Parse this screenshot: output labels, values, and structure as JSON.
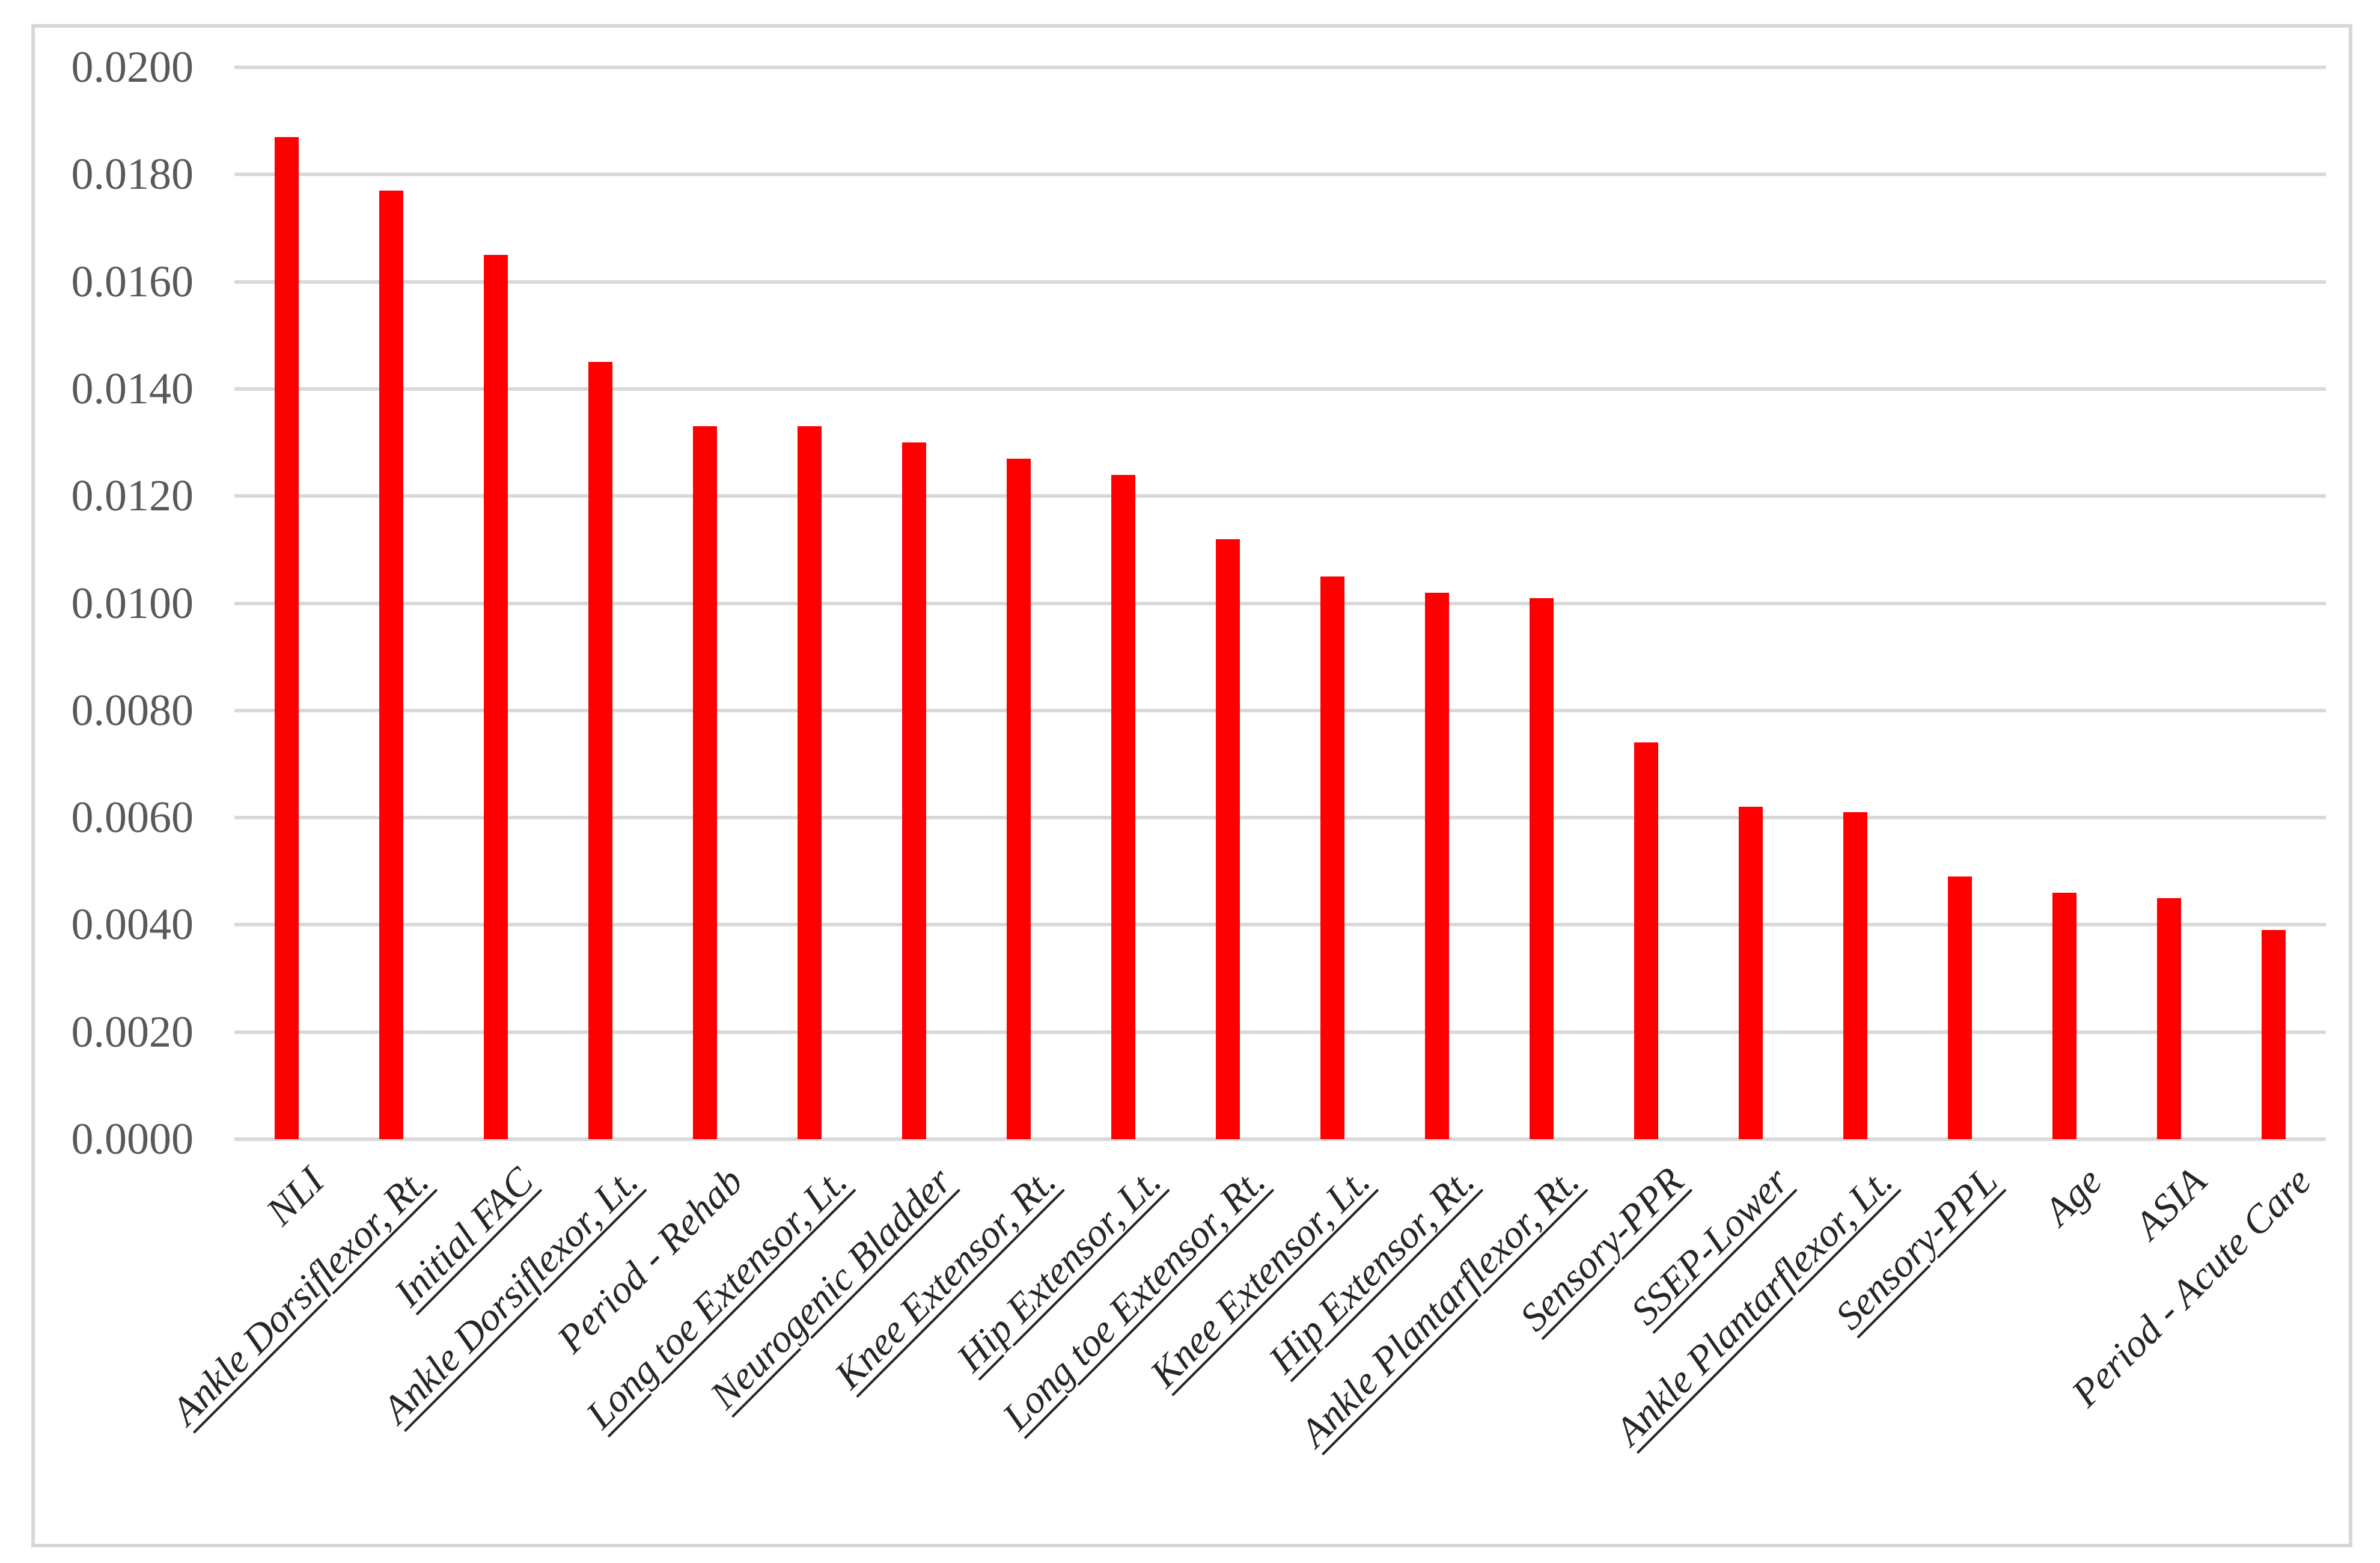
{
  "chart_data": {
    "type": "bar",
    "title": "",
    "xlabel": "",
    "ylabel": "",
    "categories": [
      "NLI",
      "Ankle Dorsiflexor, Rt.",
      "Initial FAC",
      "Ankle Dorsiflexor, Lt.",
      "Period - Rehab",
      "Long toe Extensor, Lt.",
      "Neurogenic Bladder",
      "Knee Extensor, Rt.",
      "Hip Extensor, Lt.",
      "Long toe Extensor, Rt.",
      "Knee Extensor, Lt.",
      "Hip Extensor, Rt.",
      "Ankle Plantarflexor, Rt.",
      "Sensory-PPR",
      "SSEP-Lower",
      "Ankle Plantarflexor, Lt.",
      "Sensory-PPL",
      "Age",
      "ASIA",
      "Period - Acute Care"
    ],
    "values": [
      0.0187,
      0.0177,
      0.0165,
      0.0145,
      0.0133,
      0.0133,
      0.013,
      0.0127,
      0.0124,
      0.0112,
      0.0105,
      0.0102,
      0.0101,
      0.0074,
      0.0062,
      0.0061,
      0.0049,
      0.0046,
      0.0045,
      0.0039
    ],
    "underlined_categories": [
      false,
      true,
      true,
      true,
      false,
      true,
      true,
      true,
      true,
      true,
      true,
      true,
      true,
      true,
      true,
      true,
      true,
      false,
      false,
      false
    ],
    "ylim": [
      0.0,
      0.02
    ],
    "ytick_step": 0.002,
    "ytick_labels": [
      "0.0000",
      "0.0020",
      "0.0040",
      "0.0060",
      "0.0080",
      "0.0100",
      "0.0120",
      "0.0140",
      "0.0160",
      "0.0180",
      "0.0200"
    ],
    "grid": "horizontal",
    "legend_position": "none",
    "bar_color": "#FF0000",
    "gridline_color": "#D9D9D9",
    "frame_color": "#D7D7D7",
    "ytick_label_color": "#595959",
    "category_label_color": "#262626"
  }
}
